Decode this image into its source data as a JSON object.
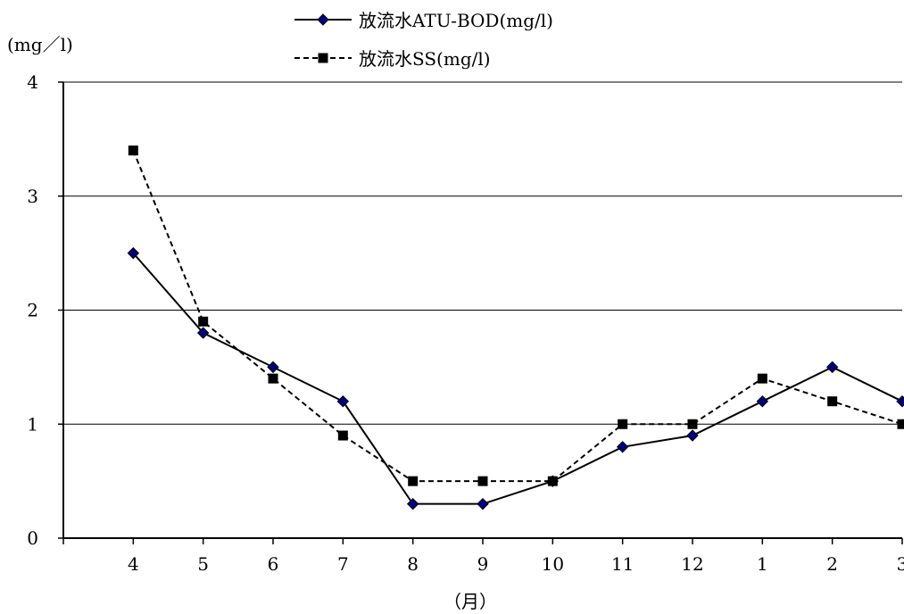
{
  "chart_data": {
    "type": "line",
    "categories": [
      "4",
      "5",
      "6",
      "7",
      "8",
      "9",
      "10",
      "11",
      "12",
      "1",
      "2",
      "3"
    ],
    "series": [
      {
        "name": "放流水ATU-BOD(mg/l)",
        "values": [
          2.5,
          1.8,
          1.5,
          1.2,
          0.3,
          0.3,
          0.5,
          0.8,
          0.9,
          1.2,
          1.5,
          1.2
        ],
        "color": "#000000",
        "marker": "diamond",
        "marker_color": "#000080",
        "line_style": "solid"
      },
      {
        "name": "放流水SS(mg/l)",
        "values": [
          3.4,
          1.9,
          1.4,
          0.9,
          0.5,
          0.5,
          0.5,
          1.0,
          1.0,
          1.4,
          1.2,
          1.0
        ],
        "color": "#000000",
        "marker": "square",
        "marker_color": "#000000",
        "line_style": "dashed"
      }
    ],
    "ylabel": "(mg／l)",
    "xlabel": "（月）",
    "ylim": [
      0,
      4
    ],
    "yticks": [
      0,
      1,
      2,
      3,
      4
    ],
    "grid": "horizontal",
    "legend_position": "top-center"
  }
}
